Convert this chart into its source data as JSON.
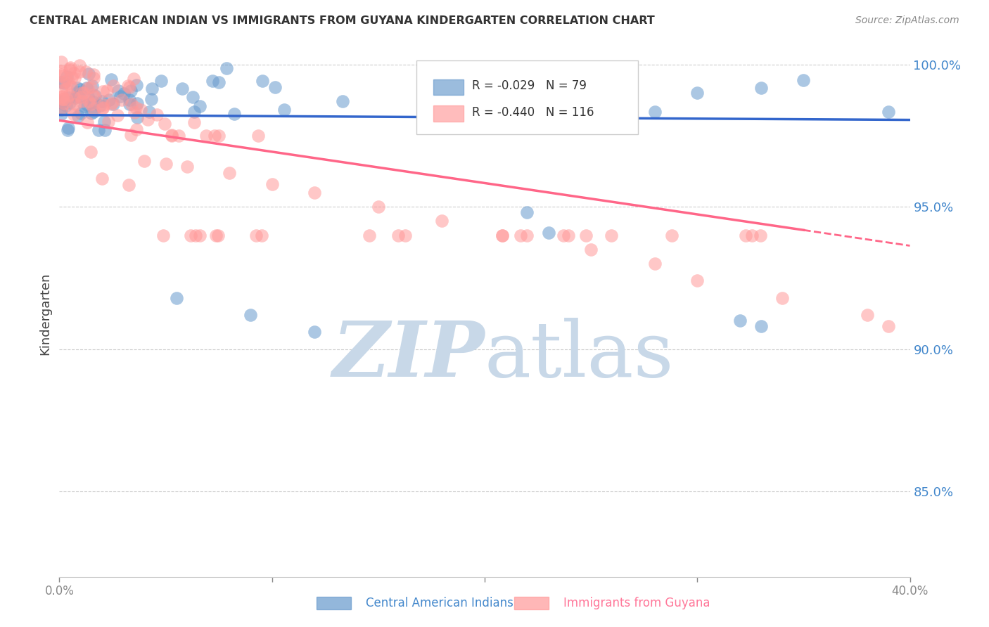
{
  "title": "CENTRAL AMERICAN INDIAN VS IMMIGRANTS FROM GUYANA KINDERGARTEN CORRELATION CHART",
  "source": "Source: ZipAtlas.com",
  "ylabel": "Kindergarten",
  "legend_blue_r": "-0.029",
  "legend_blue_n": "79",
  "legend_pink_r": "-0.440",
  "legend_pink_n": "116",
  "legend_blue_label": "Central American Indians",
  "legend_pink_label": "Immigrants from Guyana",
  "blue_color": "#6699CC",
  "pink_color": "#FF9999",
  "blue_line_color": "#3366CC",
  "pink_line_color": "#FF6688",
  "watermark_color": "#C8D8E8",
  "xlim": [
    0.0,
    0.4
  ],
  "ylim": [
    0.82,
    1.005
  ],
  "grid_lines": [
    0.85,
    0.9,
    0.95,
    1.0
  ],
  "y_tick_labels": [
    "85.0%",
    "90.0%",
    "95.0%",
    "100.0%"
  ]
}
